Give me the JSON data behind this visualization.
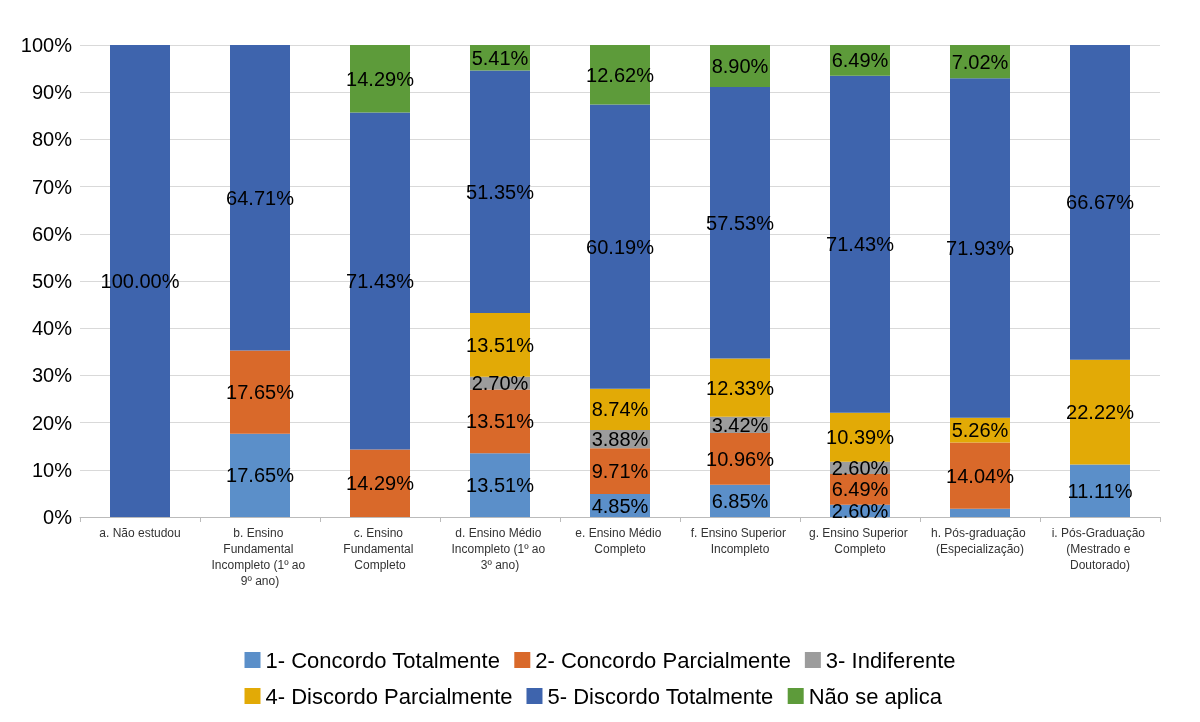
{
  "chart_data": {
    "type": "bar",
    "stacked": true,
    "categories": [
      "a. Não estudou",
      "b. Ensino Fundamental Incompleto (1º ao 9º ano)",
      "c. Ensino Fundamental Completo",
      "d. Ensino Médio Incompleto (1º ao 3º ano)",
      "e. Ensino Médio Completo",
      "f. Ensino Superior Incompleto",
      "g. Ensino Superior Completo",
      "h. Pós-graduação (Especialização)",
      "i. Pós-Graduação (Mestrado e Doutorado)"
    ],
    "series": [
      {
        "name": "1- Concordo Totalmente",
        "color": "#5b8fc9",
        "values": [
          null,
          17.65,
          null,
          13.51,
          4.85,
          6.85,
          2.6,
          1.75,
          11.11
        ],
        "value_labels": [
          null,
          "17.65%",
          null,
          "13.51%",
          "4.85%",
          "6.85%",
          "2.60%",
          null,
          "11.11%"
        ]
      },
      {
        "name": "2- Concordo Parcialmente",
        "color": "#d9692a",
        "values": [
          null,
          17.65,
          14.29,
          13.51,
          9.71,
          10.96,
          6.49,
          14.04,
          null
        ],
        "value_labels": [
          null,
          "17.65%",
          "14.29%",
          "13.51%",
          "9.71%",
          "10.96%",
          "6.49%",
          "14.04%",
          null
        ]
      },
      {
        "name": "3- Indiferente",
        "color": "#9c9c9c",
        "values": [
          null,
          null,
          null,
          2.7,
          3.88,
          3.42,
          2.6,
          null,
          null
        ],
        "value_labels": [
          null,
          null,
          null,
          "2.70%",
          "3.88%",
          "3.42%",
          "2.60%",
          null,
          null
        ]
      },
      {
        "name": "4- Discordo Parcialmente",
        "color": "#e2aa06",
        "values": [
          null,
          null,
          null,
          13.51,
          8.74,
          12.33,
          10.39,
          5.26,
          22.22
        ],
        "value_labels": [
          null,
          null,
          null,
          "13.51%",
          "8.74%",
          "12.33%",
          "10.39%",
          "5.26%",
          "22.22%"
        ]
      },
      {
        "name": "5- Discordo Totalmente",
        "color": "#3e64ad",
        "values": [
          100.0,
          64.71,
          71.43,
          51.35,
          60.19,
          57.53,
          71.43,
          71.93,
          66.67
        ],
        "value_labels": [
          "100.00%",
          "64.71%",
          "71.43%",
          "51.35%",
          "60.19%",
          "57.53%",
          "71.43%",
          "71.93%",
          "66.67%"
        ]
      },
      {
        "name": "Não se aplica",
        "color": "#5d9b3a",
        "values": [
          null,
          null,
          14.29,
          5.41,
          12.62,
          8.9,
          6.49,
          7.02,
          null
        ],
        "value_labels": [
          null,
          null,
          "14.29%",
          "5.41%",
          "12.62%",
          "8.90%",
          "6.49%",
          "7.02%",
          null
        ]
      }
    ],
    "ylim": [
      0,
      100
    ],
    "yticks": [
      {
        "value": 0,
        "label": "0%"
      },
      {
        "value": 10,
        "label": "10%"
      },
      {
        "value": 20,
        "label": "20%"
      },
      {
        "value": 30,
        "label": "30%"
      },
      {
        "value": 40,
        "label": "40%"
      },
      {
        "value": 50,
        "label": "50%"
      },
      {
        "value": 60,
        "label": "60%"
      },
      {
        "value": 70,
        "label": "70%"
      },
      {
        "value": 80,
        "label": "80%"
      },
      {
        "value": 90,
        "label": "90%"
      },
      {
        "value": 100,
        "label": "100%"
      }
    ],
    "grid": "y",
    "legend": "bottom"
  }
}
